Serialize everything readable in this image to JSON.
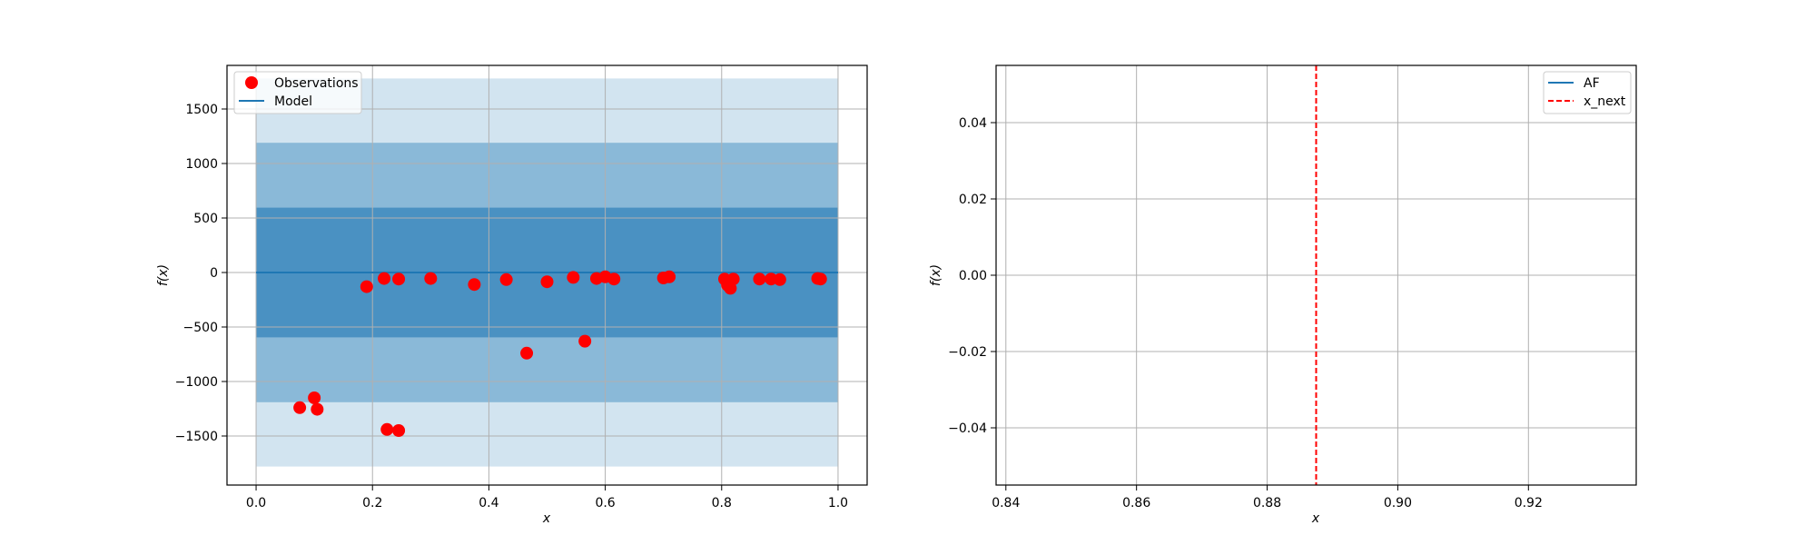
{
  "chart_data": [
    {
      "type": "scatter",
      "title": "",
      "xlabel": "x",
      "ylabel": "f(x)",
      "xlim": [
        -0.05,
        1.05
      ],
      "ylim": [
        -1950,
        1900
      ],
      "xticks": [
        0.0,
        0.2,
        0.4,
        0.6,
        0.8,
        1.0
      ],
      "xtick_labels": [
        "0.0",
        "0.2",
        "0.4",
        "0.6",
        "0.8",
        "1.0"
      ],
      "yticks": [
        -1500,
        -1000,
        -500,
        0,
        500,
        1000,
        1500
      ],
      "ytick_labels": [
        "−1500",
        "−1000",
        "−500",
        "0",
        "500",
        "1000",
        "1500"
      ],
      "grid": true,
      "legend": "upper-left",
      "colors": {
        "points": "#ff0000",
        "model": "#1f77b4",
        "band": "#1f77b4"
      },
      "model_line": {
        "x": [
          0.0,
          1.0
        ],
        "y": [
          0,
          0
        ]
      },
      "confidence_bands": [
        {
          "x_range": [
            0.0,
            1.0
          ],
          "lower": -1780,
          "upper": 1780,
          "opacity": 0.2
        },
        {
          "x_range": [
            0.0,
            1.0
          ],
          "lower": -1190,
          "upper": 1190,
          "opacity": 0.4
        },
        {
          "x_range": [
            0.0,
            1.0
          ],
          "lower": -595,
          "upper": 595,
          "opacity": 0.6
        }
      ],
      "series": [
        {
          "name": "Observations",
          "x": [
            0.075,
            0.1,
            0.105,
            0.19,
            0.22,
            0.225,
            0.245,
            0.245,
            0.3,
            0.375,
            0.43,
            0.465,
            0.5,
            0.545,
            0.565,
            0.585,
            0.6,
            0.615,
            0.7,
            0.71,
            0.805,
            0.81,
            0.815,
            0.82,
            0.865,
            0.885,
            0.9,
            0.965,
            0.97
          ],
          "y": [
            -1240,
            -1150,
            -1255,
            -130,
            -55,
            -1440,
            -1450,
            -60,
            -55,
            -110,
            -65,
            -740,
            -85,
            -45,
            -630,
            -55,
            -40,
            -60,
            -50,
            -40,
            -60,
            -115,
            -145,
            -60,
            -60,
            -60,
            -65,
            -55,
            -60
          ]
        },
        {
          "name": "Model"
        }
      ]
    },
    {
      "type": "line",
      "title": "",
      "xlabel": "x",
      "ylabel": "f(x)",
      "xlim": [
        0.8385,
        0.9365
      ],
      "ylim": [
        -0.055,
        0.055
      ],
      "xticks": [
        0.84,
        0.86,
        0.88,
        0.9,
        0.92
      ],
      "xtick_labels": [
        "0.84",
        "0.86",
        "0.88",
        "0.90",
        "0.92"
      ],
      "yticks": [
        -0.04,
        -0.02,
        0.0,
        0.02,
        0.04
      ],
      "ytick_labels": [
        "−0.04",
        "−0.02",
        "0.00",
        "0.02",
        "0.04"
      ],
      "grid": true,
      "legend": "upper-right",
      "colors": {
        "af": "#1f77b4",
        "x_next": "#ff0000"
      },
      "series": [
        {
          "name": "AF",
          "x": [],
          "y": []
        },
        {
          "name": "x_next",
          "vline_x": 0.8875
        }
      ]
    }
  ]
}
